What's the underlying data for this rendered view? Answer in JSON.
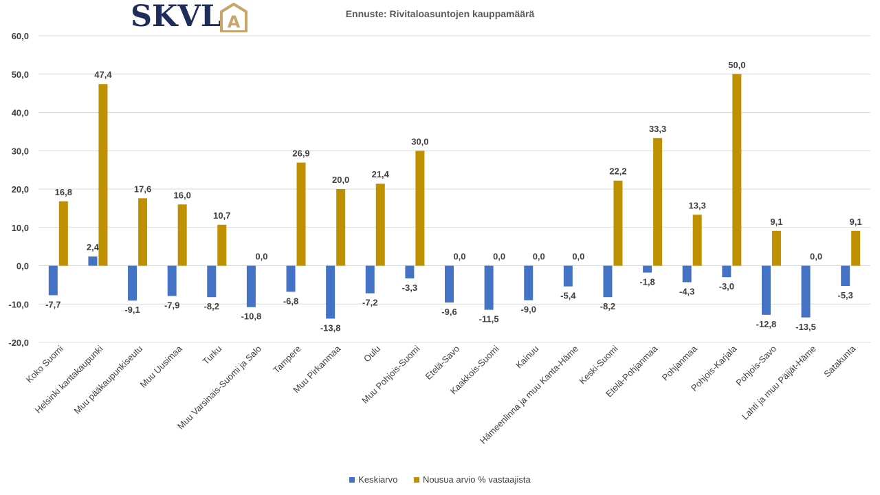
{
  "logo": {
    "text": "SKVL",
    "mark": "A"
  },
  "colors": {
    "keskiarvo": "#4472c4",
    "nousua": "#bf9000"
  },
  "chart_data": {
    "type": "bar",
    "title": "Ennuste: Rivitaloasuntojen kauppamäärä",
    "ylim": [
      -20,
      60
    ],
    "yticks": [
      "-20,0",
      "-10,0",
      "0,0",
      "10,0",
      "20,0",
      "30,0",
      "40,0",
      "50,0",
      "60,0"
    ],
    "grid": true,
    "legend_position": "bottom",
    "categories": [
      "Koko Suomi",
      "Helsinki kantakaupunki",
      "Muu pääkaupunkiseutu",
      "Muu Uusimaa",
      "Turku",
      "Muu Varsinais-Suomi ja Salo",
      "Tampere",
      "Muu Pirkanmaa",
      "Oulu",
      "Muu Pohjois-Suomi",
      "Etelä-Savo",
      "Kaakkois-Suomi",
      "Kainuu",
      "Hämeenlinna ja muu Kanta-Häme",
      "Keski-Suomi",
      "Etelä-Pohjanmaa",
      "Pohjanmaa",
      "Pohjois-Karjala",
      "Pohjois-Savo",
      "Lahti ja muu Päijät-Häme",
      "Satakunta"
    ],
    "series": [
      {
        "name": "Keskiarvo",
        "values": [
          -7.7,
          2.4,
          -9.1,
          -7.9,
          -8.2,
          -10.8,
          -6.8,
          -13.8,
          -7.2,
          -3.3,
          -9.6,
          -11.5,
          -9.0,
          -5.4,
          -8.2,
          -1.8,
          -4.3,
          -3.0,
          -12.8,
          -13.5,
          -5.3
        ],
        "labels": [
          "-7,7",
          "2,4",
          "-9,1",
          "-7,9",
          "-8,2",
          "-10,8",
          "-6,8",
          "-13,8",
          "-7,2",
          "-3,3",
          "-9,6",
          "-11,5",
          "-9,0",
          "-5,4",
          "-8,2",
          "-1,8",
          "-4,3",
          "-3,0",
          "-12,8",
          "-13,5",
          "-5,3"
        ]
      },
      {
        "name": "Nousua arvio % vastaajista",
        "values": [
          16.8,
          47.4,
          17.6,
          16.0,
          10.7,
          0.0,
          26.9,
          20.0,
          21.4,
          30.0,
          0.0,
          0.0,
          0.0,
          0.0,
          22.2,
          33.3,
          13.3,
          50.0,
          9.1,
          0.0,
          9.1
        ],
        "labels": [
          "16,8",
          "47,4",
          "17,6",
          "16,0",
          "10,7",
          "0,0",
          "26,9",
          "20,0",
          "21,4",
          "30,0",
          "0,0",
          "0,0",
          "0,0",
          "0,0",
          "22,2",
          "33,3",
          "13,3",
          "50,0",
          "9,1",
          "0,0",
          "9,1"
        ]
      }
    ]
  }
}
